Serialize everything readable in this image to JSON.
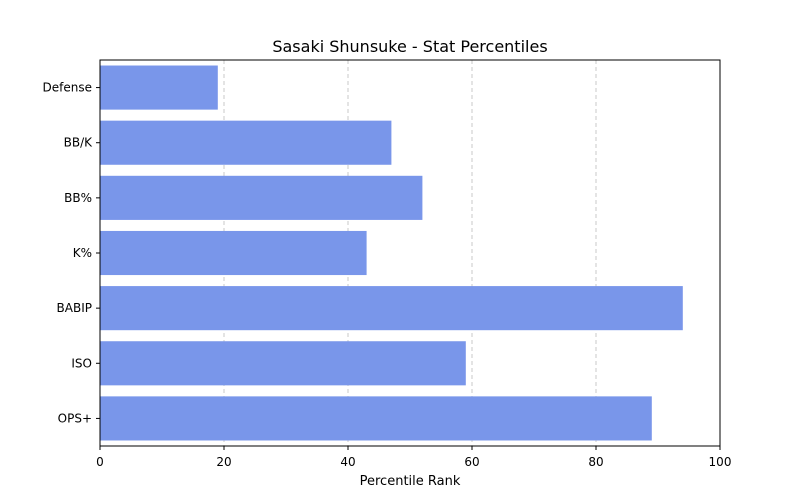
{
  "chart_data": {
    "type": "bar",
    "orientation": "horizontal",
    "title": "Sasaki Shunsuke - Stat Percentiles",
    "xlabel": "Percentile Rank",
    "ylabel": "",
    "categories": [
      "OPS+",
      "ISO",
      "BABIP",
      "K%",
      "BB%",
      "BB/K",
      "Defense"
    ],
    "values": [
      89,
      59,
      94,
      43,
      52,
      47,
      19
    ],
    "xlim": [
      0,
      100
    ],
    "xticks": [
      0,
      20,
      40,
      60,
      80,
      100
    ],
    "grid": "x-dashed",
    "bar_color": "#7996ea"
  }
}
